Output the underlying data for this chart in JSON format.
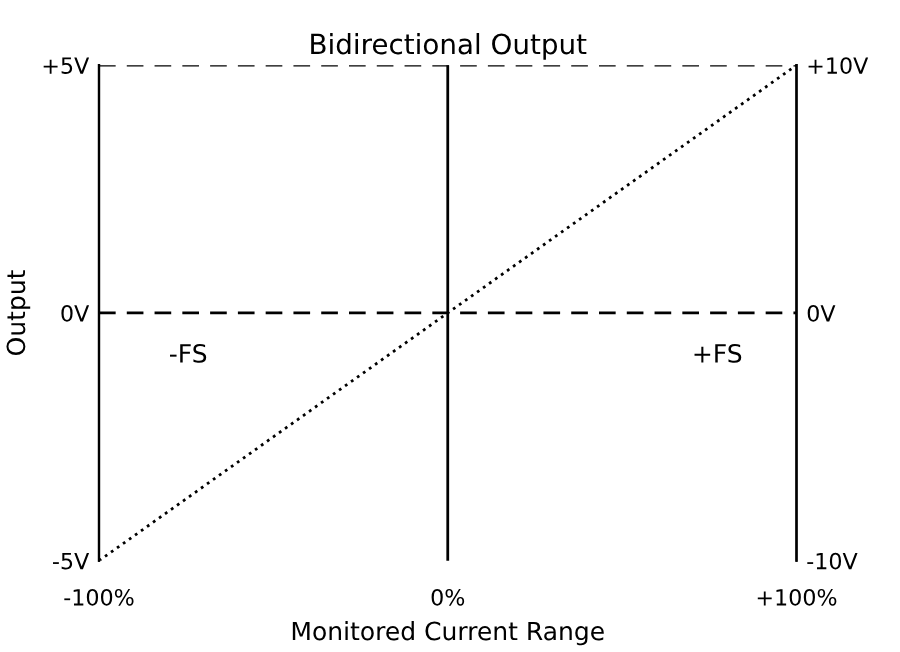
{
  "chart_data": {
    "type": "line",
    "title": "Bidirectional Output",
    "xlabel": "Monitored Current Range",
    "ylabel": "Output",
    "annotations": [
      "-FS",
      "+FS"
    ],
    "series": [
      {
        "x": [
          -100,
          100
        ],
        "values": [
          -5,
          5
        ],
        "color": "#000000",
        "line_style": "dotted"
      }
    ],
    "xlim": [
      -100,
      100
    ],
    "xticks": [
      {
        "value": -100,
        "label": "-100%"
      },
      {
        "value": 0,
        "label": "0%"
      },
      {
        "value": 100,
        "label": "+100%"
      }
    ],
    "ylim": [
      -5,
      5
    ],
    "yticks": [
      {
        "value": -5,
        "label": "-5V"
      },
      {
        "value": 0,
        "label": "0V"
      },
      {
        "value": 5,
        "label": "+5V"
      }
    ],
    "y2lim": [
      -10,
      10
    ],
    "y2ticks": [
      {
        "value": -10,
        "label": "-10V"
      },
      {
        "value": 0,
        "label": "0V"
      },
      {
        "value": 10,
        "label": "+10V"
      }
    ],
    "ref_lines": [
      {
        "axis": "y",
        "value": 5,
        "line_style": "dashed",
        "color": "#000000"
      },
      {
        "axis": "y",
        "value": 0,
        "line_style": "dashed",
        "color": "#000000"
      },
      {
        "axis": "x",
        "value": 0,
        "line_style": "solid",
        "color": "#000000"
      }
    ],
    "grid": false,
    "legend": false
  }
}
